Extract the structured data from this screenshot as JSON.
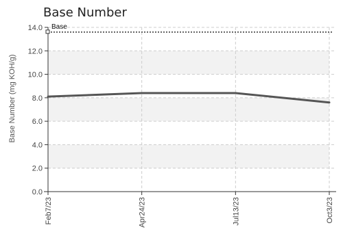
{
  "chart_data": {
    "type": "line",
    "title": "Base Number",
    "xlabel": "",
    "ylabel": "Base Number (mg KOH/g)",
    "ylim": [
      0,
      14
    ],
    "yticks": [
      "0.0",
      "2.0",
      "4.0",
      "6.0",
      "8.0",
      "10.0",
      "12.0",
      "14.0"
    ],
    "x": [
      "Feb7/23",
      "Apr24/23",
      "Jul13/23",
      "Oct3/23"
    ],
    "grid": true,
    "series": [
      {
        "values": [
          8.1,
          8.4,
          8.4,
          7.6
        ],
        "color": "#555555"
      }
    ],
    "reference_line": {
      "label": "Base",
      "value": 13.6,
      "style": "dotted",
      "color": "#333333"
    },
    "band_color": "#f2f2f2"
  }
}
